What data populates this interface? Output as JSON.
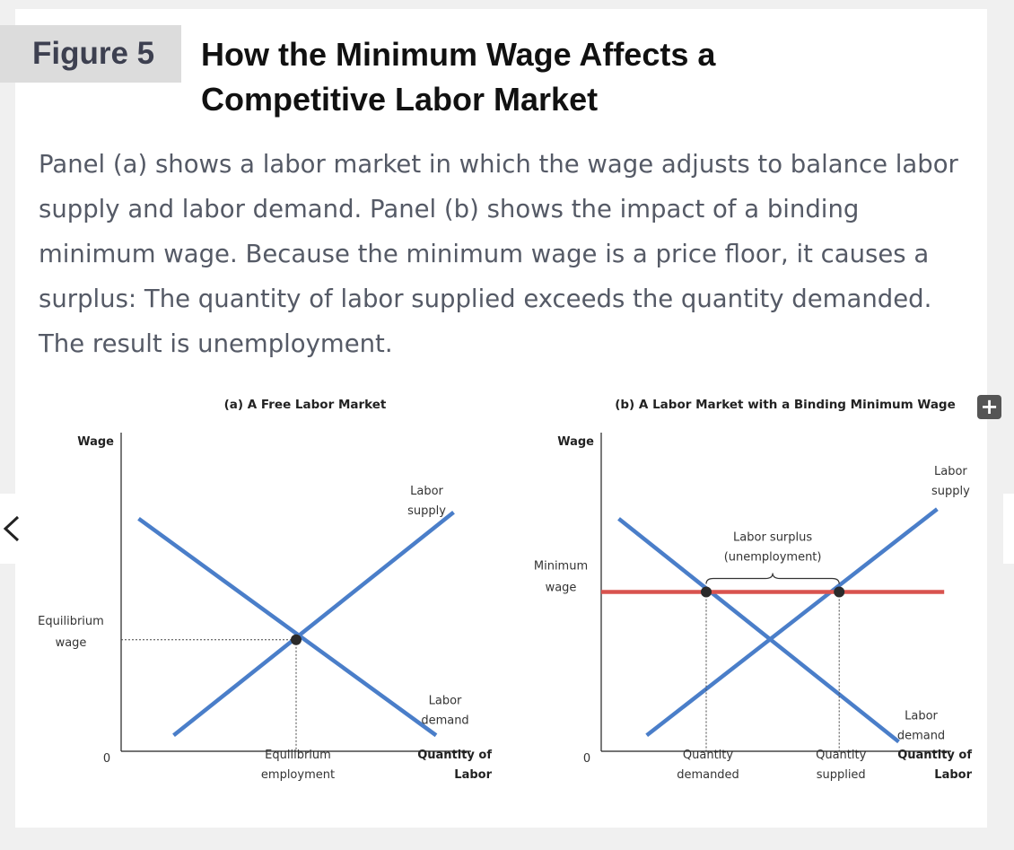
{
  "figure": {
    "label": "Figure 5",
    "title": "How the Minimum Wage Affects a Competitive Labor Market",
    "caption": "Panel (a) shows a labor market in which the wage adjusts to balance labor supply and labor demand. Panel (b) shows the impact of a binding minimum wage. Because the minimum wage is a price floor, it causes a surplus: The quantity of labor supplied exceeds the quantity demanded. The result is unemployment."
  },
  "controls": {
    "expand_icon": "plus-icon",
    "prev_icon": "chevron-left-icon",
    "expand_glyph": "+",
    "prev_glyph": "‹"
  },
  "colors": {
    "curve": "#4a7ec9",
    "minimum_wage": "#d9534f",
    "axis": "#222222",
    "point": "#2a2a2a"
  },
  "chart_data": [
    {
      "type": "line",
      "title": "(a) A Free Labor Market",
      "ylabel": "Wage",
      "xlabel": "Quantity of Labor",
      "origin_label": "0",
      "xlim": [
        0,
        10
      ],
      "ylim": [
        0,
        10
      ],
      "series": [
        {
          "name": "Labor supply",
          "x": [
            1.5,
            9.5
          ],
          "y": [
            0.5,
            7.5
          ]
        },
        {
          "name": "Labor demand",
          "x": [
            0.5,
            9.0
          ],
          "y": [
            7.3,
            0.5
          ]
        }
      ],
      "equilibrium": {
        "x": 5.0,
        "y": 3.5,
        "xlabel": "Equilibrium employment",
        "ylabel": "Equilibrium wage"
      },
      "grid": false
    },
    {
      "type": "line",
      "title": "(b) A Labor Market with a Binding Minimum Wage",
      "ylabel": "Wage",
      "xlabel": "Quantity of Labor",
      "origin_label": "0",
      "xlim": [
        0,
        10
      ],
      "ylim": [
        0,
        10
      ],
      "series": [
        {
          "name": "Labor supply",
          "x": [
            1.3,
            9.6
          ],
          "y": [
            0.5,
            7.6
          ]
        },
        {
          "name": "Labor demand",
          "x": [
            0.5,
            8.5
          ],
          "y": [
            7.3,
            0.3
          ]
        }
      ],
      "minimum_wage": {
        "label": "Minimum wage",
        "y": 5.0,
        "x_start": 0,
        "x_end": 9.8
      },
      "points": [
        {
          "x": 3.0,
          "y": 5.0,
          "label": "Quantity demanded"
        },
        {
          "x": 6.8,
          "y": 5.0,
          "label": "Quantity supplied"
        }
      ],
      "annotation": "Labor surplus (unemployment)",
      "grid": false
    }
  ]
}
